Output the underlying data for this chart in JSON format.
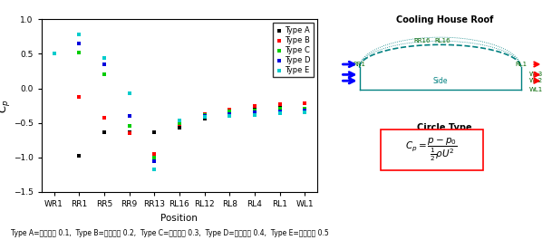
{
  "positions": [
    "WR1",
    "RR1",
    "RR5",
    "RR9",
    "RR13",
    "RL16",
    "RL12",
    "RL8",
    "RL4",
    "RL1",
    "WL1"
  ],
  "type_a": [
    0.5,
    -0.98,
    -0.63,
    -0.63,
    -0.63,
    -0.57,
    -0.44,
    -0.37,
    -0.29,
    -0.25,
    -0.22
  ],
  "type_b": [
    0.5,
    -0.13,
    -0.43,
    -0.65,
    -0.95,
    -0.52,
    -0.37,
    -0.31,
    -0.26,
    -0.23,
    -0.21
  ],
  "type_c": [
    0.5,
    0.52,
    0.2,
    -0.55,
    -1.0,
    -0.5,
    -0.38,
    -0.34,
    -0.32,
    -0.3,
    -0.29
  ],
  "type_d": [
    0.5,
    0.65,
    0.35,
    -0.4,
    -1.05,
    -0.47,
    -0.4,
    -0.37,
    -0.35,
    -0.33,
    -0.32
  ],
  "type_e": [
    0.5,
    0.78,
    0.44,
    -0.07,
    -1.17,
    -0.46,
    -0.41,
    -0.4,
    -0.38,
    -0.36,
    -0.35
  ],
  "colors": {
    "A": "#000000",
    "B": "#ff0000",
    "C": "#00cc00",
    "D": "#0000dd",
    "E": "#00cccc"
  },
  "ylabel": "$C_p$",
  "xlabel": "Position",
  "ylim": [
    -1.5,
    1.0
  ],
  "yticks": [
    -1.5,
    -1.0,
    -0.5,
    0.0,
    0.5,
    1.0
  ],
  "title_diagram": "Cooling House Roof",
  "subtitle_diagram": "Circle Type",
  "caption": "Type A=라이즈비 0.1,  Type B=라이즈비 0.2,  Type C=라이즈비 0.3,  Type D=라이즈비 0.4,  Type E=라이즈비 0.5"
}
